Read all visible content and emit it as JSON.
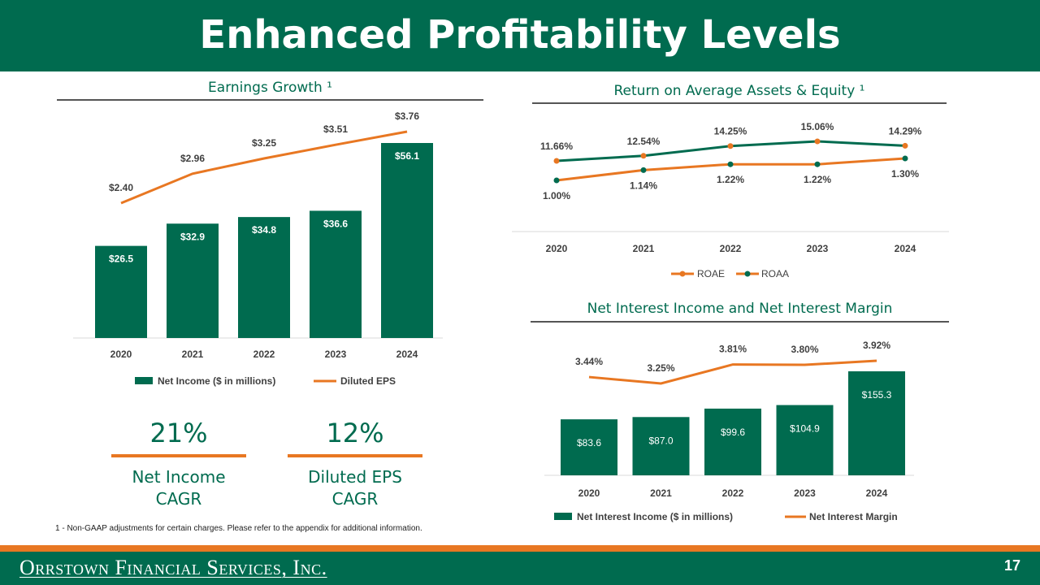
{
  "title": "Enhanced Profitability Levels",
  "colors": {
    "green": "#006B4F",
    "orange": "#E87722"
  },
  "chart_data": [
    {
      "id": "earnings",
      "type": "bar",
      "title": "Earnings Growth ¹",
      "categories": [
        "2020",
        "2021",
        "2022",
        "2023",
        "2024"
      ],
      "series": [
        {
          "name": "Net Income ($ in millions)",
          "type": "bar",
          "values": [
            26.5,
            32.9,
            34.8,
            36.6,
            56.1
          ],
          "labels": [
            "$26.5",
            "$32.9",
            "$34.8",
            "$36.6",
            "$56.1"
          ]
        },
        {
          "name": "Diluted EPS",
          "type": "line",
          "values": [
            2.4,
            2.96,
            3.25,
            3.51,
            3.76
          ],
          "labels": [
            "$2.40",
            "$2.96",
            "$3.25",
            "$3.51",
            "$3.76"
          ]
        }
      ],
      "legend": "bottom"
    },
    {
      "id": "returns",
      "type": "line",
      "title": "Return on Average Assets & Equity ¹",
      "categories": [
        "2020",
        "2021",
        "2022",
        "2023",
        "2024"
      ],
      "series": [
        {
          "name": "ROAE",
          "values": [
            11.66,
            12.54,
            14.25,
            15.06,
            14.29
          ],
          "labels": [
            "11.66%",
            "12.54%",
            "14.25%",
            "15.06%",
            "14.29%"
          ]
        },
        {
          "name": "ROAA",
          "values": [
            1.0,
            1.14,
            1.22,
            1.22,
            1.3
          ],
          "labels": [
            "1.00%",
            "1.14%",
            "1.22%",
            "1.22%",
            "1.30%"
          ]
        }
      ],
      "legend": "bottom"
    },
    {
      "id": "nii",
      "type": "bar",
      "title": "Net Interest Income and Net Interest Margin",
      "categories": [
        "2020",
        "2021",
        "2022",
        "2023",
        "2024"
      ],
      "series": [
        {
          "name": "Net Interest Income ($ in millions)",
          "type": "bar",
          "values": [
            83.6,
            87.0,
            99.6,
            104.9,
            155.3
          ],
          "labels": [
            "$83.6",
            "$87.0",
            "$99.6",
            "$104.9",
            "$155.3"
          ]
        },
        {
          "name": "Net Interest Margin",
          "type": "line",
          "values": [
            3.44,
            3.25,
            3.81,
            3.8,
            3.92
          ],
          "labels": [
            "3.44%",
            "3.25%",
            "3.81%",
            "3.80%",
            "3.92%"
          ]
        }
      ],
      "legend": "bottom"
    }
  ],
  "kpis": [
    {
      "value": "21%",
      "label_line1": "Net Income",
      "label_line2": "CAGR"
    },
    {
      "value": "12%",
      "label_line1": "Diluted EPS",
      "label_line2": "CAGR"
    }
  ],
  "footnote": "1 - Non-GAAP adjustments for certain charges. Please refer to the appendix for additional information.",
  "footer": {
    "company": "Orrstown Financial Services, Inc.",
    "page": "17"
  }
}
